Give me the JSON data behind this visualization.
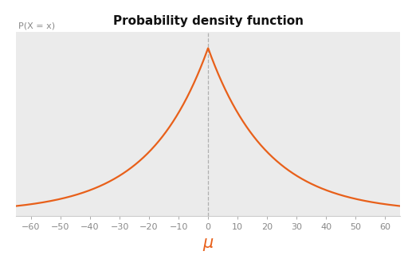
{
  "title": "Probability density function",
  "ylabel": "P(X = x)",
  "xlabel": "μ",
  "mu": 0,
  "b": 20,
  "x_min": -65,
  "x_max": 65,
  "x_ticks": [
    -60,
    -50,
    -40,
    -30,
    -20,
    -10,
    0,
    10,
    20,
    30,
    40,
    50,
    60
  ],
  "line_color": "#e8601a",
  "dashed_line_color": "#b0b0b0",
  "background_color": "#ebebeb",
  "fig_background": "#ffffff",
  "title_fontsize": 11,
  "ylabel_fontsize": 8,
  "xlabel_fontsize": 15,
  "tick_fontsize": 8,
  "xlabel_color": "#e8601a",
  "tick_color": "#888888",
  "spine_color": "#cccccc"
}
